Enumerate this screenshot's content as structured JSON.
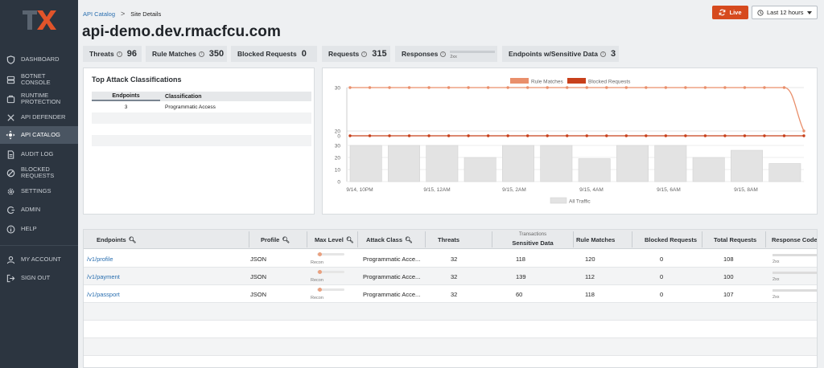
{
  "sidebar": {
    "logo": "TX",
    "items": [
      {
        "label": "DASHBOARD",
        "icon": "shield-icon"
      },
      {
        "label": "BOTNET CONSOLE",
        "icon": "server-icon"
      },
      {
        "label": "RUNTIME PROTECTION",
        "icon": "runtime-icon"
      },
      {
        "label": "API DEFENDER",
        "icon": "defender-icon"
      },
      {
        "label": "API CATALOG",
        "icon": "catalog-icon"
      },
      {
        "label": "AUDIT LOG",
        "icon": "document-icon"
      },
      {
        "label": "BLOCKED REQUESTS",
        "icon": "blocked-icon"
      },
      {
        "label": "SETTINGS",
        "icon": "gear-icon"
      },
      {
        "label": "ADMIN",
        "icon": "admin-icon"
      },
      {
        "label": "HELP",
        "icon": "info-icon"
      },
      {
        "label": "MY ACCOUNT",
        "icon": "user-icon"
      },
      {
        "label": "SIGN OUT",
        "icon": "sign-out-icon"
      }
    ]
  },
  "header": {
    "breadcrumb_link": "API Catalog",
    "breadcrumb_sep": ">",
    "breadcrumb_current": "Site Details",
    "title": "api-demo.dev.rmacfcu.com",
    "live_label": "Live",
    "time_range": "Last 12 hours"
  },
  "stats": {
    "threats_label": "Threats",
    "threats_value": "96",
    "rule_matches_label": "Rule Matches",
    "rule_matches_value": "350",
    "blocked_label": "Blocked Requests",
    "blocked_value": "0",
    "requests_label": "Requests",
    "requests_value": "315",
    "responses_label": "Responses",
    "responses_code": "2xx",
    "sensitive_label": "Endpoints w/Sensitive Data",
    "sensitive_value": "3"
  },
  "attack_panel": {
    "title": "Top Attack Classifications",
    "col_endpoints": "Endpoints",
    "col_classification": "Classification",
    "rows": [
      {
        "endpoints": "3",
        "classification": "Programmatic Access"
      }
    ]
  },
  "chart_data": {
    "type": "line",
    "legend_top": [
      "Rule Matches",
      "Blocked Requests"
    ],
    "legend_bottom": [
      "All Traffic"
    ],
    "y_ticks_top": [
      "30",
      "20",
      "0"
    ],
    "y_ticks_bottom": [
      "30",
      "20",
      "10",
      "0"
    ],
    "x_labels": [
      "9/14, 10PM",
      "9/15, 12AM",
      "9/15, 2AM",
      "9/15, 4AM",
      "9/15, 6AM",
      "9/15, 8AM"
    ],
    "series": [
      {
        "name": "Rule Matches",
        "color": "#e98f6b",
        "values": [
          30,
          30,
          30,
          30,
          30,
          30,
          30,
          30,
          30,
          30,
          30,
          30,
          30,
          30,
          30,
          30,
          30,
          30,
          30,
          30,
          30,
          30,
          30,
          20
        ]
      },
      {
        "name": "Blocked Requests",
        "color": "#c8401b",
        "values": [
          0,
          0,
          0,
          0,
          0,
          0,
          0,
          0,
          0,
          0,
          0,
          0,
          0,
          0,
          0,
          0,
          0,
          0,
          0,
          0,
          0,
          0,
          0,
          0
        ]
      },
      {
        "name": "All Traffic",
        "color": "#e3e3e3",
        "values": [
          30,
          30,
          30,
          20,
          30,
          30,
          19,
          30,
          30,
          20,
          26,
          15
        ]
      }
    ]
  },
  "table": {
    "headers": {
      "endpoints": "Endpoints",
      "profile": "Profile",
      "max_level": "Max Level",
      "attack_class": "Attack Class",
      "threats": "Threats",
      "transactions": "Transactions",
      "sensitive": "Sensitive Data",
      "rule_matches": "Rule Matches",
      "blocked": "Blocked Requests",
      "total": "Total Requests",
      "codes": "Response Codes"
    },
    "rows": [
      {
        "endpoint": "/v1/profile",
        "profile": "JSON",
        "level": "Recon",
        "attack": "Programmatic Acce...",
        "threats": "32",
        "sensitive": "118",
        "rule_matches": "120",
        "blocked": "0",
        "total": "108",
        "code": "2xx"
      },
      {
        "endpoint": "/v1/payment",
        "profile": "JSON",
        "level": "Recon",
        "attack": "Programmatic Acce...",
        "threats": "32",
        "sensitive": "139",
        "rule_matches": "112",
        "blocked": "0",
        "total": "100",
        "code": "2xx"
      },
      {
        "endpoint": "/v1/passport",
        "profile": "JSON",
        "level": "Recon",
        "attack": "Programmatic Acce...",
        "threats": "32",
        "sensitive": "60",
        "rule_matches": "118",
        "blocked": "0",
        "total": "107",
        "code": "2xx"
      }
    ]
  }
}
